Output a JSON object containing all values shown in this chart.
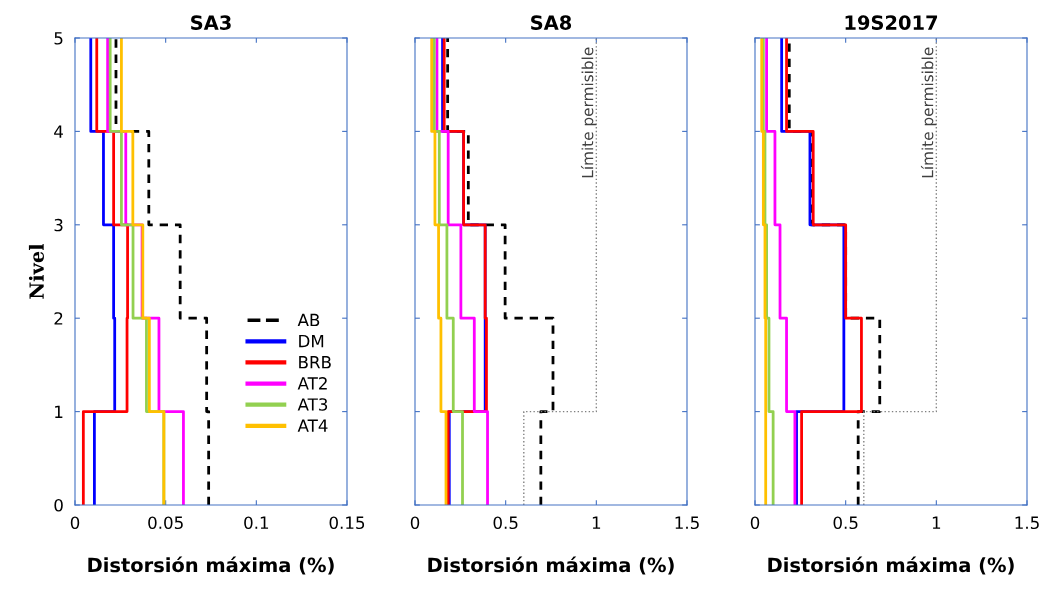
{
  "chart_data": [
    {
      "type": "step",
      "orientation": "horizontal",
      "title": "SA3",
      "xlabel": "Distorsión máxima (%)",
      "ylabel": "Nivel",
      "xlim": [
        0,
        0.15
      ],
      "xticks": [
        0,
        0.05,
        0.1,
        0.15
      ],
      "ylim": [
        0,
        5
      ],
      "yticks": [
        0,
        1,
        2,
        3,
        4,
        5
      ],
      "x": [
        0,
        1,
        2,
        3,
        4,
        5
      ],
      "legend": "center right",
      "grid": false,
      "series": [
        {
          "name": "AB",
          "color": "#000000",
          "line_style": "dashed",
          "values": [
            0.0737,
            0.0726,
            0.058,
            0.0407,
            0.0226,
            0.0226
          ]
        },
        {
          "name": "DM",
          "color": "#0000ff",
          "values": [
            0.0107,
            0.0219,
            0.0213,
            0.0157,
            0.0087,
            0.0087
          ]
        },
        {
          "name": "BRB",
          "color": "#ff0000",
          "values": [
            0.0046,
            0.0287,
            0.029,
            0.0213,
            0.012,
            0.012
          ]
        },
        {
          "name": "AT2",
          "color": "#ff00ff",
          "values": [
            0.0598,
            0.0463,
            0.037,
            0.028,
            0.018,
            0.018
          ]
        },
        {
          "name": "AT3",
          "color": "#92d050",
          "values": [
            0.049,
            0.0394,
            0.032,
            0.0256,
            0.0194,
            0.0194
          ]
        },
        {
          "name": "AT4",
          "color": "#ffc000",
          "values": [
            0.049,
            0.041,
            0.0374,
            0.0319,
            0.0256,
            0.0256
          ]
        }
      ]
    },
    {
      "type": "step",
      "orientation": "horizontal",
      "title": "SA8",
      "xlabel": "Distorsión máxima (%)",
      "xlim": [
        0,
        1.5
      ],
      "xticks": [
        0,
        0.5,
        1,
        1.5
      ],
      "ylim": [
        0,
        5
      ],
      "yticks": [
        0,
        1,
        2,
        3,
        4,
        5
      ],
      "tick_labels": "x",
      "x": [
        0,
        1,
        2,
        3,
        4,
        5
      ],
      "grid": false,
      "series": [
        {
          "color": "#000000",
          "line_style": "dashed",
          "values": [
            0.694,
            0.761,
            0.497,
            0.294,
            0.18,
            0.18
          ]
        },
        {
          "color": "#0000ff",
          "values": [
            0.189,
            0.387,
            0.387,
            0.268,
            0.152,
            0.152
          ]
        },
        {
          "color": "#ff0000",
          "values": [
            0.183,
            0.394,
            0.387,
            0.268,
            0.161,
            0.161
          ]
        },
        {
          "color": "#ff00ff",
          "values": [
            0.4,
            0.327,
            0.253,
            0.183,
            0.121,
            0.121
          ]
        },
        {
          "color": "#92d050",
          "values": [
            0.262,
            0.211,
            0.176,
            0.134,
            0.106,
            0.106
          ]
        },
        {
          "color": "#ffc000",
          "values": [
            0.171,
            0.143,
            0.13,
            0.11,
            0.092,
            0.092
          ]
        },
        {
          "name": "Límite permisible",
          "type": "line",
          "color": "#808080",
          "line_style": "dotted",
          "x": [
            0,
            1,
            1,
            5
          ],
          "values": [
            0.6,
            0.6,
            1,
            1
          ]
        }
      ]
    },
    {
      "type": "step",
      "orientation": "horizontal",
      "title": "19S2017",
      "xlabel": "Distorsión máxima (%)",
      "xlim": [
        0,
        1.5
      ],
      "xticks": [
        0,
        0.5,
        1,
        1.5
      ],
      "ylim": [
        0,
        5
      ],
      "yticks": [
        0,
        1,
        2,
        3,
        4,
        5
      ],
      "tick_labels": "x",
      "x": [
        0,
        1,
        2,
        3,
        4,
        5
      ],
      "grid": false,
      "series": [
        {
          "color": "#000000",
          "line_style": "dashed",
          "values": [
            0.569,
            0.688,
            0.5,
            0.312,
            0.189,
            0.189
          ]
        },
        {
          "color": "#0000ff",
          "values": [
            0.229,
            0.49,
            0.49,
            0.303,
            0.147,
            0.147
          ]
        },
        {
          "color": "#ff0000",
          "values": [
            0.257,
            0.587,
            0.5,
            0.321,
            0.174,
            0.174
          ]
        },
        {
          "color": "#ff00ff",
          "values": [
            0.22,
            0.174,
            0.138,
            0.11,
            0.064,
            0.064
          ]
        },
        {
          "color": "#92d050",
          "values": [
            0.1,
            0.077,
            0.064,
            0.055,
            0.046,
            0.046
          ]
        },
        {
          "color": "#ffc000",
          "values": [
            0.059,
            0.059,
            0.055,
            0.046,
            0.037,
            0.037
          ]
        },
        {
          "name": "Límite permisible",
          "type": "line",
          "color": "#808080",
          "line_style": "dotted",
          "x": [
            0,
            1,
            1,
            5
          ],
          "values": [
            0.6,
            0.6,
            1,
            1
          ]
        }
      ]
    }
  ]
}
